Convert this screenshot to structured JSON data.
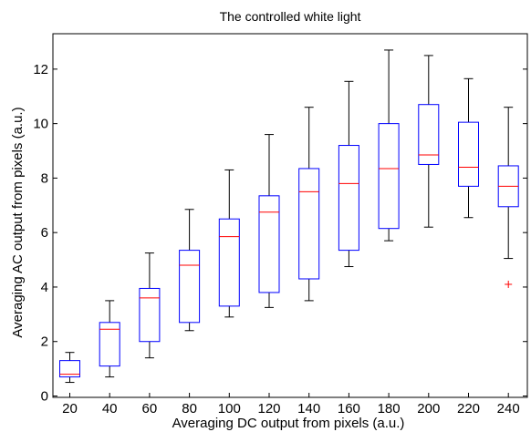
{
  "chart_data": {
    "type": "boxplot",
    "title": "The controlled white light",
    "xlabel": "Averaging DC output from pixels (a.u.)",
    "ylabel": "Averaging AC output from pixels (a.u.)",
    "ylim": [
      -0.05,
      13.3
    ],
    "yticks": [
      0,
      2,
      4,
      6,
      8,
      10,
      12
    ],
    "grid": false,
    "box_color": "#0000ff",
    "median_color": "#ff0000",
    "whisker_color": "#000000",
    "outlier_color": "#ff0000",
    "categories": [
      "20",
      "40",
      "60",
      "80",
      "100",
      "120",
      "140",
      "160",
      "180",
      "200",
      "220",
      "240"
    ],
    "boxes": [
      {
        "category": "20",
        "whisker_low": 0.5,
        "q1": 0.7,
        "median": 0.8,
        "q3": 1.3,
        "whisker_high": 1.6
      },
      {
        "category": "40",
        "whisker_low": 0.7,
        "q1": 1.1,
        "median": 2.45,
        "q3": 2.7,
        "whisker_high": 3.5
      },
      {
        "category": "60",
        "whisker_low": 1.4,
        "q1": 2.0,
        "median": 3.6,
        "q3": 3.95,
        "whisker_high": 5.25
      },
      {
        "category": "80",
        "whisker_low": 2.4,
        "q1": 2.7,
        "median": 4.8,
        "q3": 5.35,
        "whisker_high": 6.85
      },
      {
        "category": "100",
        "whisker_low": 2.9,
        "q1": 3.3,
        "median": 5.85,
        "q3": 6.5,
        "whisker_high": 8.3
      },
      {
        "category": "120",
        "whisker_low": 3.25,
        "q1": 3.8,
        "median": 6.75,
        "q3": 7.35,
        "whisker_high": 9.6
      },
      {
        "category": "140",
        "whisker_low": 3.5,
        "q1": 4.3,
        "median": 7.5,
        "q3": 8.35,
        "whisker_high": 10.6
      },
      {
        "category": "160",
        "whisker_low": 4.75,
        "q1": 5.35,
        "median": 7.8,
        "q3": 9.2,
        "whisker_high": 11.55
      },
      {
        "category": "180",
        "whisker_low": 5.7,
        "q1": 6.15,
        "median": 8.35,
        "q3": 10.0,
        "whisker_high": 12.7
      },
      {
        "category": "200",
        "whisker_low": 6.2,
        "q1": 8.5,
        "median": 8.85,
        "q3": 10.7,
        "whisker_high": 12.5
      },
      {
        "category": "220",
        "whisker_low": 6.55,
        "q1": 7.7,
        "median": 8.4,
        "q3": 10.05,
        "whisker_high": 11.65
      },
      {
        "category": "240",
        "whisker_low": 5.05,
        "q1": 6.95,
        "median": 7.7,
        "q3": 8.45,
        "whisker_high": 10.6,
        "outliers": [
          4.1
        ]
      }
    ]
  }
}
